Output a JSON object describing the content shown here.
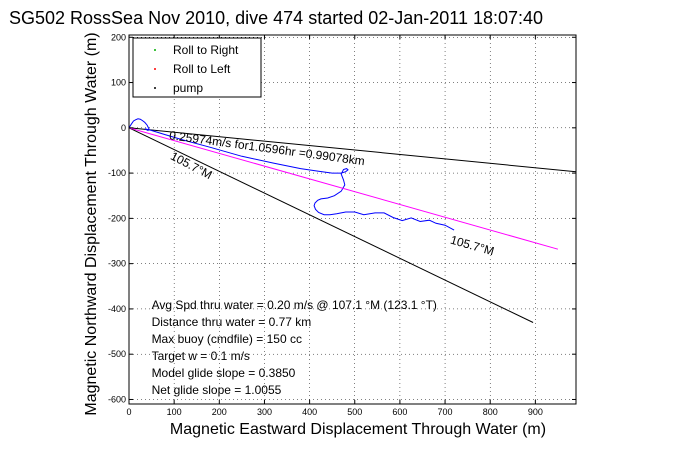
{
  "chart_data": {
    "type": "line",
    "title": "SG502 RossSea Nov 2010, dive 474 started 02-Jan-2011 18:07:40",
    "xlabel": "Magnetic Eastward Displacement Through Water (m)",
    "ylabel": "Magnetic Northward Displacement Through Water (m)",
    "xlim": [
      0,
      990
    ],
    "ylim": [
      -610,
      205
    ],
    "xticks": [
      0,
      100,
      200,
      300,
      400,
      500,
      600,
      700,
      800,
      900
    ],
    "yticks": [
      200,
      100,
      0,
      -100,
      -200,
      -300,
      -400,
      -500,
      -600
    ],
    "grid": true,
    "legend_position": "top-left",
    "legend": [
      {
        "label": "Roll to Right",
        "color": "#00b000"
      },
      {
        "label": "Roll to Left",
        "color": "#ff0000"
      },
      {
        "label": "pump",
        "color": "#000000"
      }
    ],
    "series": [
      {
        "color": "#0000ff",
        "x": [
          0,
          5,
          10,
          15,
          20,
          25,
          30,
          35,
          40,
          44,
          42,
          38,
          35,
          50,
          80,
          120,
          180,
          250,
          320,
          380,
          420,
          450,
          470,
          480,
          485,
          482,
          475,
          470,
          475,
          478,
          470,
          455,
          440,
          425,
          418,
          412,
          410,
          413,
          420,
          432,
          445,
          460,
          480,
          500,
          520,
          545,
          565,
          585,
          605,
          625,
          645,
          665,
          680,
          700,
          720
        ],
        "y": [
          0,
          8,
          15,
          18,
          20,
          19,
          16,
          12,
          6,
          -2,
          -6,
          -4,
          -2,
          -6,
          -15,
          -27,
          -43,
          -63,
          -78,
          -90,
          -96,
          -100,
          -100,
          -97,
          -93,
          -90,
          -92,
          -102,
          -115,
          -126,
          -140,
          -150,
          -155,
          -157,
          -160,
          -166,
          -172,
          -180,
          -187,
          -192,
          -192,
          -190,
          -186,
          -186,
          -192,
          -188,
          -188,
          -198,
          -205,
          -199,
          -207,
          -204,
          -211,
          -215,
          -226
        ]
      },
      {
        "color": "#ff00ff",
        "x": [
          0,
          950
        ],
        "y": [
          0,
          -268
        ]
      }
    ],
    "reference_lines": [
      {
        "color": "#000000",
        "x": [
          0,
          1000
        ],
        "y": [
          0,
          -98
        ]
      },
      {
        "color": "#000000",
        "x": [
          0,
          895
        ],
        "y": [
          0,
          -430
        ]
      }
    ],
    "annotations": [
      {
        "text": "0.25974m/s for1.0596hr =0.99078km",
        "x": 88,
        "y": -25
      },
      {
        "text": "105.7°M",
        "x": 90,
        "y": -68
      },
      {
        "text": "105.7°M",
        "x": 710,
        "y": -255
      }
    ],
    "stats_text": [
      "Avg Spd thru water =  0.20 m/s @ 107.1   °M (123.1 °T)",
      "Distance thru water =  0.77 km",
      "Max buoy (cmdfile) = 150 cc",
      "Target w = 0.1 m/s",
      "Model glide slope = 0.3850",
      "Net glide slope = 1.0055"
    ],
    "stats_x": 50,
    "stats_y": [
      -400,
      -438,
      -475,
      -513,
      -550,
      -588
    ]
  }
}
